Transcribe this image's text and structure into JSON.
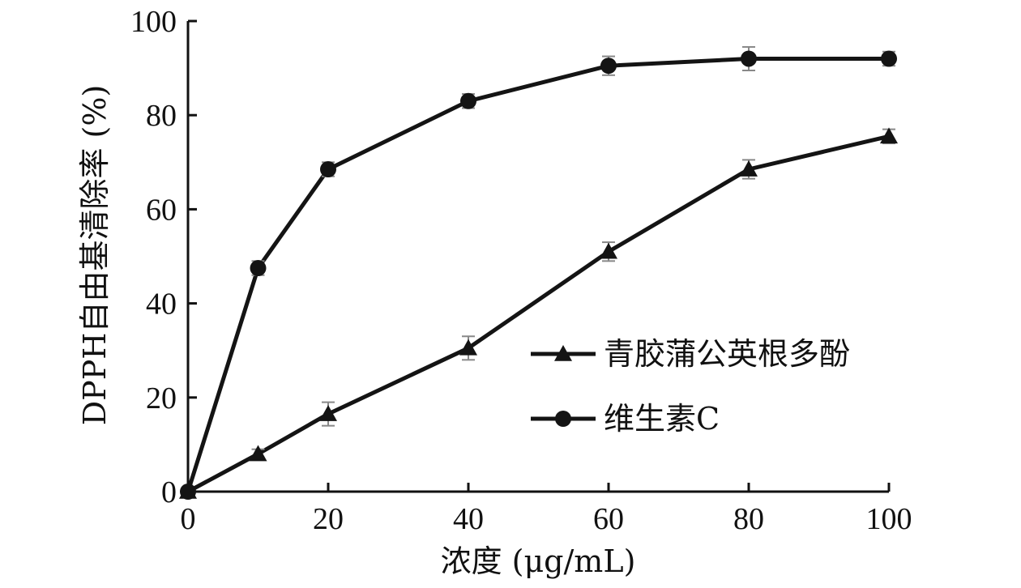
{
  "chart_data": {
    "type": "line",
    "xlabel": "浓度 (μg/mL)",
    "ylabel": "DPPH自由基清除率 (%)",
    "xlim": [
      0,
      100
    ],
    "ylim": [
      0,
      100
    ],
    "x_ticks": [
      0,
      20,
      40,
      60,
      80,
      100
    ],
    "y_ticks": [
      0,
      20,
      40,
      60,
      80,
      100
    ],
    "x_tick_labels": [
      "0",
      "20",
      "40",
      "60",
      "80",
      "100"
    ],
    "y_tick_labels": [
      "0",
      "20",
      "40",
      "60",
      "80",
      "100"
    ],
    "legend_position": "lower-right",
    "grid": false,
    "series": [
      {
        "name": "青胶蒲公英根多酚",
        "marker": "triangle",
        "x": [
          0,
          10,
          20,
          40,
          60,
          80,
          100
        ],
        "y": [
          0,
          8,
          16.5,
          30.5,
          51,
          68.5,
          75.5
        ],
        "error": [
          0.5,
          1,
          2.5,
          2.5,
          2,
          2,
          1.5
        ]
      },
      {
        "name": "维生素C",
        "marker": "circle",
        "x": [
          0,
          10,
          20,
          40,
          60,
          80,
          100
        ],
        "y": [
          0,
          47.5,
          68.5,
          83,
          90.5,
          92,
          92
        ],
        "error": [
          0.5,
          1.5,
          1.5,
          1.5,
          2,
          2.5,
          1.5
        ]
      }
    ],
    "colors": {
      "line": "#141414",
      "axis": "#111111",
      "errorbar": "#888888"
    }
  }
}
